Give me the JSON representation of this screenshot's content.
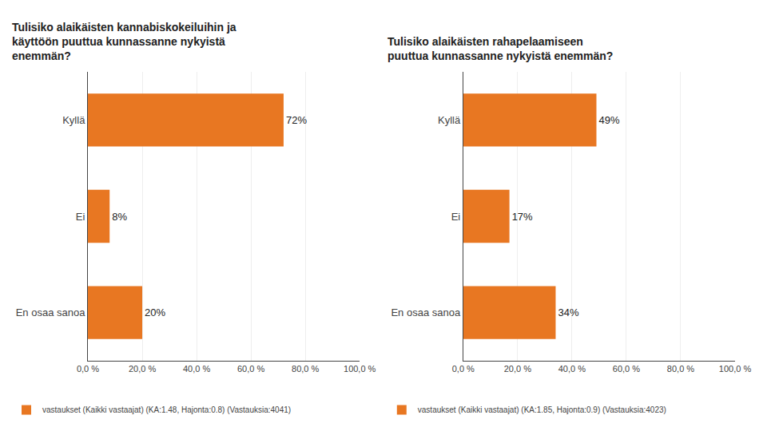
{
  "chart_data": [
    {
      "type": "bar",
      "orientation": "horizontal",
      "title": "Tulisiko alaikäisten kannabiskokeiluihin ja\nkäyttöön puuttua kunnassanne nykyistä\nenemmän?",
      "categories": [
        "Kyllä",
        "Ei",
        "En osaa sanoa"
      ],
      "series": [
        {
          "name": "vastaukset (Kaikki vastaajat) (KA:1.48, Hajonta:0.8) (Vastauksia:4041)",
          "color": "#E87722",
          "values": [
            72,
            8,
            20
          ],
          "value_labels": [
            "72%",
            "8%",
            "20%"
          ]
        }
      ],
      "xlim": [
        0,
        100
      ],
      "xticks": [
        {
          "value": 0,
          "label": "0,0 %"
        },
        {
          "value": 20,
          "label": "20,0 %"
        },
        {
          "value": 40,
          "label": "40,0 %"
        },
        {
          "value": 60,
          "label": "60,0 %"
        },
        {
          "value": 80,
          "label": "80,0 %"
        },
        {
          "value": 100,
          "label": "100,0 %"
        }
      ],
      "grid": true,
      "data_labels": true,
      "legend": "bottom"
    },
    {
      "type": "bar",
      "orientation": "horizontal",
      "title": "Tulisiko alaikäisten rahapelaamiseen\npuuttua kunnassanne nykyistä enemmän?",
      "categories": [
        "Kyllä",
        "Ei",
        "En osaa sanoa"
      ],
      "series": [
        {
          "name": "vastaukset (Kaikki vastaajat) (KA:1.85, Hajonta:0.9) (Vastauksia:4023)",
          "color": "#E87722",
          "values": [
            49,
            17,
            34
          ],
          "value_labels": [
            "49%",
            "17%",
            "34%"
          ]
        }
      ],
      "xlim": [
        0,
        100
      ],
      "xticks": [
        {
          "value": 0,
          "label": "0,0 %"
        },
        {
          "value": 20,
          "label": "20,0 %"
        },
        {
          "value": 40,
          "label": "40,0 %"
        },
        {
          "value": 60,
          "label": "60,0 %"
        },
        {
          "value": 80,
          "label": "80,0 %"
        },
        {
          "value": 100,
          "label": "100,0 %"
        }
      ],
      "grid": true,
      "data_labels": true,
      "legend": "bottom"
    }
  ]
}
